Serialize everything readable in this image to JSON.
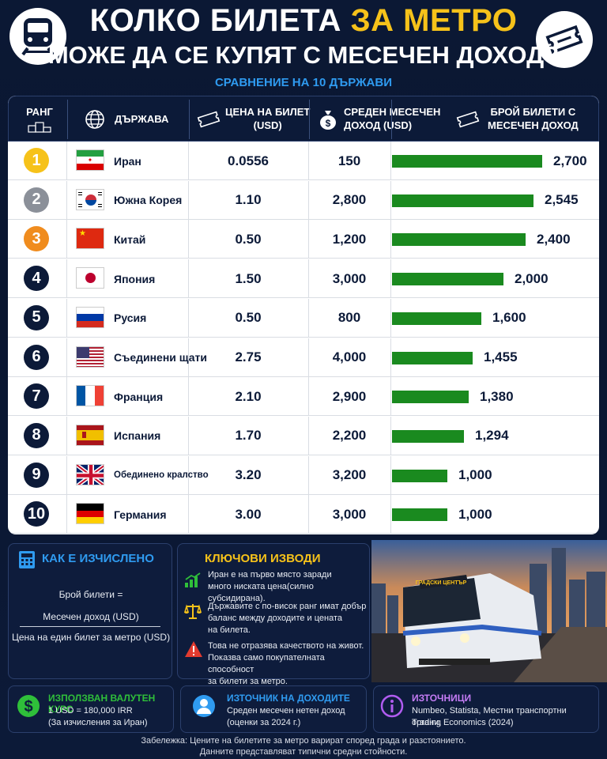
{
  "header": {
    "title_part1": "КОЛКО БИЛЕТА",
    "title_highlight": "ЗА МЕТРО",
    "title_line2": "МОЖЕ ДА СЕ КУПЯТ С МЕСЕЧЕН ДОХОД?",
    "subtitle": "СРАВНЕНИЕ НА 10 ДЪРЖАВИ",
    "left_icon": "train-icon",
    "right_icon": "ticket-icon"
  },
  "table": {
    "headers": {
      "rank": "РАНГ",
      "country": "ДЪРЖАВА",
      "price_line1": "ЦЕНА НА БИЛЕТ",
      "price_line2": "(USD)",
      "income_line1": "СРЕДЕН МЕСЕЧЕН",
      "income_line2": "ДОХОД (USD)",
      "tickets_line1": "БРОЙ БИЛЕТИ С",
      "tickets_line2": "МЕСЕЧЕН ДОХОД"
    },
    "rows": [
      {
        "rank": "1",
        "country": "Иран",
        "price": "0.0556",
        "income": "150",
        "tickets_label": "2,700",
        "flag": "iran-flag-icon"
      },
      {
        "rank": "2",
        "country": "Южна Корея",
        "price": "1.10",
        "income": "2,800",
        "tickets_label": "2,545",
        "flag": "south-korea-flag-icon"
      },
      {
        "rank": "3",
        "country": "Китай",
        "price": "0.50",
        "income": "1,200",
        "tickets_label": "2,400",
        "flag": "china-flag-icon"
      },
      {
        "rank": "4",
        "country": "Япония",
        "price": "1.50",
        "income": "3,000",
        "tickets_label": "2,000",
        "flag": "japan-flag-icon"
      },
      {
        "rank": "5",
        "country": "Русия",
        "price": "0.50",
        "income": "800",
        "tickets_label": "1,600",
        "flag": "russia-flag-icon"
      },
      {
        "rank": "6",
        "country": "Съединени щати",
        "price": "2.75",
        "income": "4,000",
        "tickets_label": "1,455",
        "flag": "usa-flag-icon"
      },
      {
        "rank": "7",
        "country": "Франция",
        "price": "2.10",
        "income": "2,900",
        "tickets_label": "1,380",
        "flag": "france-flag-icon"
      },
      {
        "rank": "8",
        "country": "Испания",
        "price": "1.70",
        "income": "2,200",
        "tickets_label": "1,294",
        "flag": "spain-flag-icon"
      },
      {
        "rank": "9",
        "country": "Обединено кралство",
        "price": "3.20",
        "income": "3,200",
        "tickets_label": "1,000",
        "flag": "uk-flag-icon"
      },
      {
        "rank": "10",
        "country": "Германия",
        "price": "3.00",
        "income": "3,000",
        "tickets_label": "1,000",
        "flag": "germany-flag-icon"
      }
    ]
  },
  "chart_data": {
    "type": "bar",
    "categories": [
      "Иран",
      "Южна Корея",
      "Китай",
      "Япония",
      "Русия",
      "Съединени щати",
      "Франция",
      "Испания",
      "Обединено кралство",
      "Германия"
    ],
    "values": [
      2700,
      2545,
      2400,
      2000,
      1600,
      1455,
      1380,
      1294,
      1000,
      1000
    ],
    "orientation": "horizontal",
    "bar_color": "#1a8a1f"
  },
  "colors": {
    "gold": "#f6c21a",
    "silver": "#8b9099",
    "bronze": "#f08c1e",
    "navy": "#0c1a38",
    "accent_blue": "#2f9bf0",
    "bar_green": "#1a8a1f"
  },
  "calc_panel": {
    "title": "КАК Е ИЗЧИСЛЕНО",
    "icon": "calculator-icon",
    "formula_lhs": "Брой билети =",
    "numerator": "Месечен доход (USD)",
    "denominator": "Цена на един билет за метро (USD)"
  },
  "findings_panel": {
    "title": "КЛЮЧОВИ ИЗВОДИ",
    "items": [
      {
        "icon": "growth-chart-icon",
        "text1": "Иран е на първо място заради",
        "text2": "много ниската цена(силно субсидирана)."
      },
      {
        "icon": "balance-scale-icon",
        "text1": "Държавите с по-висок ранг имат добър",
        "text2": "баланс между доходите и цената",
        "text3": "на билета."
      },
      {
        "icon": "warning-icon",
        "text1": "Това не отразява качеството на живот.",
        "text2": "Показва само покупателната способност",
        "text3": "за билети за метро."
      }
    ]
  },
  "photo": {
    "train_sign": "ГРАДСКИ ЦЕНТЪР"
  },
  "bottom_panels": [
    {
      "title": "ИЗПОЛЗВАН ВАЛУТЕН КУРС",
      "icon": "dollar-icon",
      "line1": "1 USD = 180,000 IRR",
      "line2": "(За изчисления за Иран)"
    },
    {
      "title": "ИЗТОЧНИК НА ДОХОДИТЕ",
      "icon": "person-icon",
      "line1": "Среден месечен нетен доход",
      "line2": "(оценки за 2024 г.)"
    },
    {
      "title": "ИЗТОЧНИЦИ",
      "icon": "info-icon",
      "line1": "Numbeo, Statista, Местни транспортни органи,",
      "line2": "Trading Economics (2024)"
    }
  ],
  "note": {
    "line1": "Забележка: Цените на билетите за метро варират според града и разстоянието.",
    "line2": "Данните представляват типични средни стойности."
  }
}
